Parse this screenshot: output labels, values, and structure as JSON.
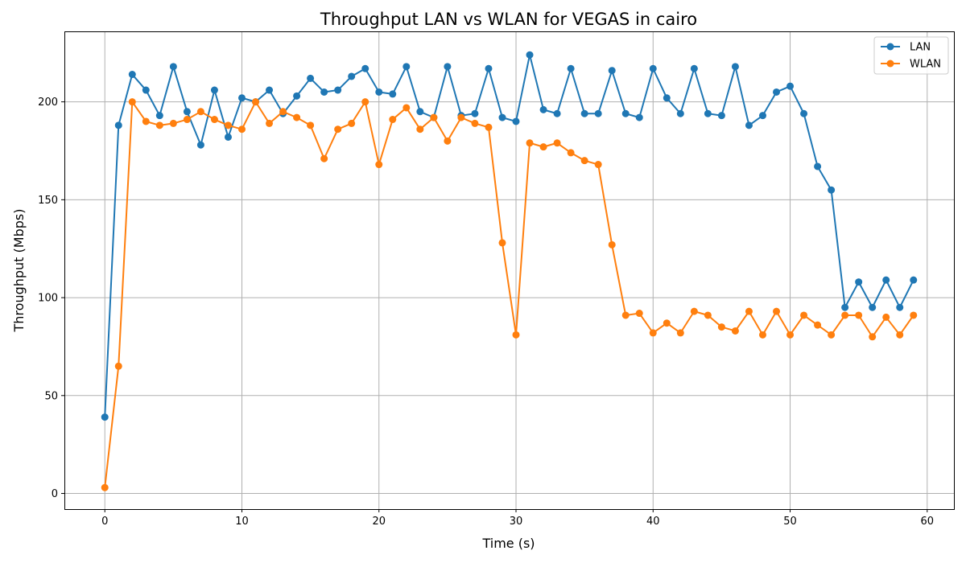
{
  "chart_data": {
    "type": "line",
    "title": "Throughput LAN vs WLAN for VEGAS in cairo",
    "xlabel": "Time (s)",
    "ylabel": "Throughput (Mbps)",
    "xlim": [
      -2.95,
      61.95
    ],
    "ylim": [
      -8,
      236
    ],
    "xticks": [
      0,
      10,
      20,
      30,
      40,
      50,
      60
    ],
    "yticks": [
      0,
      50,
      100,
      150,
      200
    ],
    "grid": true,
    "legend_position": "top-right",
    "x": [
      0,
      1,
      2,
      3,
      4,
      5,
      6,
      7,
      8,
      9,
      10,
      11,
      12,
      13,
      14,
      15,
      16,
      17,
      18,
      19,
      20,
      21,
      22,
      23,
      24,
      25,
      26,
      27,
      28,
      29,
      30,
      31,
      32,
      33,
      34,
      35,
      36,
      37,
      38,
      39,
      40,
      41,
      42,
      43,
      44,
      45,
      46,
      47,
      48,
      49,
      50,
      51,
      52,
      53,
      54,
      55,
      56,
      57,
      58,
      59
    ],
    "series": [
      {
        "name": "LAN",
        "color": "#1f77b4",
        "values": [
          39,
          188,
          214,
          206,
          193,
          218,
          195,
          178,
          206,
          182,
          202,
          200,
          206,
          194,
          203,
          212,
          205,
          206,
          213,
          217,
          205,
          204,
          218,
          195,
          192,
          218,
          193,
          194,
          217,
          192,
          190,
          224,
          196,
          194,
          217,
          194,
          194,
          216,
          194,
          192,
          217,
          202,
          194,
          217,
          194,
          193,
          218,
          188,
          193,
          205,
          208,
          194,
          167,
          155,
          95,
          108,
          95,
          109,
          95,
          109
        ]
      },
      {
        "name": "WLAN",
        "color": "#ff7f0e",
        "values": [
          3,
          65,
          200,
          190,
          188,
          189,
          191,
          195,
          191,
          188,
          186,
          200,
          189,
          195,
          192,
          188,
          171,
          186,
          189,
          200,
          168,
          191,
          197,
          186,
          192,
          180,
          192,
          189,
          187,
          128,
          81,
          179,
          177,
          179,
          174,
          170,
          168,
          127,
          91,
          92,
          82,
          87,
          82,
          93,
          91,
          85,
          83,
          93,
          81,
          93,
          81,
          91,
          86,
          81,
          91,
          91,
          80,
          90,
          81,
          91
        ]
      }
    ]
  }
}
